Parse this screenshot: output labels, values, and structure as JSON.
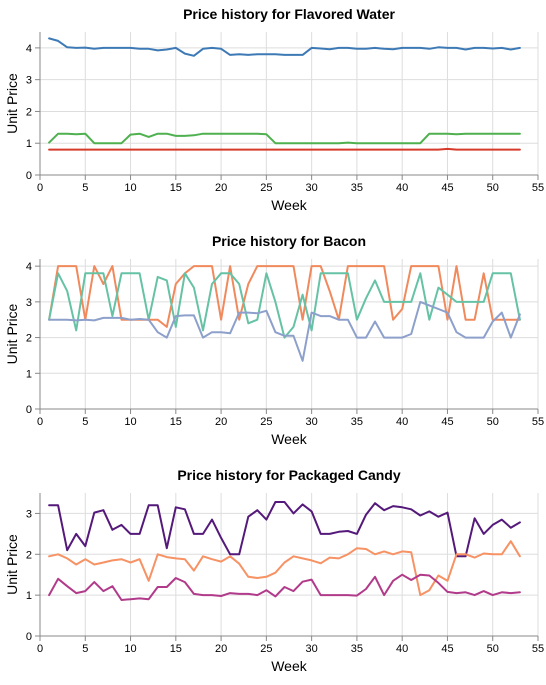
{
  "chart_data": [
    {
      "type": "line",
      "title": "Price history for Flavored Water",
      "xlabel": "Week",
      "ylabel": "Unit Price",
      "xlim": [
        0,
        55
      ],
      "ylim": [
        0,
        4.5
      ],
      "x_ticks": [
        0,
        5,
        10,
        15,
        20,
        25,
        30,
        35,
        40,
        45,
        50,
        55
      ],
      "y_ticks": [
        0,
        1,
        2,
        3,
        4
      ],
      "grid": true,
      "x": [
        1,
        2,
        3,
        4,
        5,
        6,
        7,
        8,
        9,
        10,
        11,
        12,
        13,
        14,
        15,
        16,
        17,
        18,
        19,
        20,
        21,
        22,
        23,
        24,
        25,
        26,
        27,
        28,
        29,
        30,
        31,
        32,
        33,
        34,
        35,
        36,
        37,
        38,
        39,
        40,
        41,
        42,
        43,
        44,
        45,
        46,
        47,
        48,
        49,
        50,
        51,
        52,
        53
      ],
      "series": [
        {
          "color": "#3d7ab5",
          "values": [
            4.3,
            4.22,
            4.02,
            4.0,
            4.01,
            3.97,
            4.0,
            4.0,
            4.0,
            4.0,
            3.97,
            3.97,
            3.92,
            3.95,
            4.0,
            3.82,
            3.75,
            3.97,
            4.0,
            3.97,
            3.78,
            3.8,
            3.78,
            3.8,
            3.8,
            3.8,
            3.78,
            3.78,
            3.78,
            4.0,
            3.98,
            3.96,
            4.0,
            4.0,
            3.97,
            3.97,
            4.0,
            3.97,
            3.96,
            4.0,
            4.0,
            4.0,
            3.97,
            4.02,
            4.0,
            4.0,
            3.95,
            4.0,
            4.0,
            3.98,
            4.0,
            3.95,
            4.0
          ]
        },
        {
          "color": "#4fb04f",
          "values": [
            1.02,
            1.3,
            1.3,
            1.28,
            1.3,
            1.0,
            1.0,
            1.0,
            1.0,
            1.27,
            1.3,
            1.2,
            1.3,
            1.3,
            1.23,
            1.23,
            1.25,
            1.3,
            1.3,
            1.3,
            1.3,
            1.3,
            1.3,
            1.3,
            1.28,
            1.0,
            1.0,
            1.0,
            1.0,
            1.0,
            1.0,
            1.0,
            1.0,
            1.02,
            1.0,
            1.0,
            1.0,
            1.0,
            1.0,
            1.0,
            1.0,
            1.0,
            1.3,
            1.3,
            1.3,
            1.28,
            1.3,
            1.3,
            1.3,
            1.3,
            1.3,
            1.3,
            1.3
          ]
        },
        {
          "color": "#d63a2a",
          "values": [
            0.8,
            0.8,
            0.8,
            0.8,
            0.8,
            0.8,
            0.8,
            0.8,
            0.8,
            0.8,
            0.8,
            0.8,
            0.8,
            0.8,
            0.8,
            0.8,
            0.8,
            0.8,
            0.8,
            0.8,
            0.8,
            0.8,
            0.8,
            0.8,
            0.8,
            0.8,
            0.8,
            0.8,
            0.8,
            0.8,
            0.8,
            0.8,
            0.8,
            0.8,
            0.8,
            0.8,
            0.8,
            0.8,
            0.8,
            0.8,
            0.8,
            0.8,
            0.8,
            0.8,
            0.82,
            0.8,
            0.8,
            0.8,
            0.8,
            0.8,
            0.8,
            0.8,
            0.8
          ]
        }
      ]
    },
    {
      "type": "line",
      "title": "Price history for Bacon",
      "xlabel": "Week",
      "ylabel": "Unit Price",
      "xlim": [
        0,
        55
      ],
      "ylim": [
        0,
        4.2
      ],
      "x_ticks": [
        0,
        5,
        10,
        15,
        20,
        25,
        30,
        35,
        40,
        45,
        50,
        55
      ],
      "y_ticks": [
        0,
        1,
        2,
        3,
        4
      ],
      "grid": true,
      "x": [
        1,
        2,
        3,
        4,
        5,
        6,
        7,
        8,
        9,
        10,
        11,
        12,
        13,
        14,
        15,
        16,
        17,
        18,
        19,
        20,
        21,
        22,
        23,
        24,
        25,
        26,
        27,
        28,
        29,
        30,
        31,
        32,
        33,
        34,
        35,
        36,
        37,
        38,
        39,
        40,
        41,
        42,
        43,
        44,
        45,
        46,
        47,
        48,
        49,
        50,
        51,
        52,
        53
      ],
      "series": [
        {
          "color": "#f08a5d",
          "values": [
            2.5,
            4.0,
            4.0,
            4.0,
            2.5,
            4.0,
            3.5,
            4.0,
            2.5,
            2.5,
            2.5,
            2.5,
            2.5,
            2.3,
            3.5,
            3.8,
            4.0,
            4.0,
            4.0,
            2.5,
            4.0,
            2.5,
            3.5,
            4.0,
            4.0,
            4.0,
            4.0,
            4.0,
            2.5,
            4.0,
            4.0,
            3.3,
            2.5,
            4.0,
            4.0,
            4.0,
            4.0,
            4.0,
            2.5,
            2.8,
            4.0,
            4.0,
            4.0,
            4.0,
            2.5,
            4.0,
            2.5,
            2.5,
            3.8,
            2.5,
            2.5,
            2.5,
            2.5
          ]
        },
        {
          "color": "#66c2a5",
          "values": [
            2.5,
            3.8,
            3.3,
            2.2,
            3.8,
            3.8,
            3.8,
            2.6,
            3.8,
            3.8,
            3.8,
            2.5,
            3.7,
            3.6,
            2.3,
            3.8,
            3.4,
            2.2,
            3.5,
            3.8,
            3.8,
            3.5,
            2.4,
            2.5,
            3.8,
            3.0,
            2.0,
            2.3,
            3.2,
            2.2,
            3.8,
            3.8,
            3.8,
            3.8,
            2.5,
            3.1,
            3.6,
            3.0,
            3.0,
            3.0,
            3.0,
            3.8,
            2.5,
            3.4,
            3.2,
            3.0,
            3.0,
            3.0,
            3.0,
            3.8,
            3.8,
            3.8,
            2.5
          ]
        },
        {
          "color": "#8da0cb",
          "values": [
            2.5,
            2.5,
            2.5,
            2.48,
            2.5,
            2.48,
            2.55,
            2.55,
            2.55,
            2.5,
            2.52,
            2.5,
            2.15,
            2.0,
            2.6,
            2.62,
            2.62,
            2.0,
            2.15,
            2.15,
            2.12,
            2.7,
            2.7,
            2.68,
            2.75,
            2.15,
            2.05,
            2.05,
            1.35,
            2.7,
            2.6,
            2.6,
            2.5,
            2.5,
            2.0,
            2.0,
            2.45,
            2.0,
            2.0,
            2.0,
            2.1,
            3.0,
            2.9,
            2.8,
            2.7,
            2.15,
            2.0,
            2.0,
            2.0,
            2.45,
            2.7,
            2.0,
            2.65
          ]
        }
      ]
    },
    {
      "type": "line",
      "title": "Price history for Packaged Candy",
      "xlabel": "Week",
      "ylabel": "Unit Price",
      "xlim": [
        0,
        55
      ],
      "ylim": [
        0,
        3.5
      ],
      "x_ticks": [
        0,
        5,
        10,
        15,
        20,
        25,
        30,
        35,
        40,
        45,
        50,
        55
      ],
      "y_ticks": [
        0,
        1,
        2,
        3
      ],
      "grid": true,
      "x": [
        1,
        2,
        3,
        4,
        5,
        6,
        7,
        8,
        9,
        10,
        11,
        12,
        13,
        14,
        15,
        16,
        17,
        18,
        19,
        20,
        21,
        22,
        23,
        24,
        25,
        26,
        27,
        28,
        29,
        30,
        31,
        32,
        33,
        34,
        35,
        36,
        37,
        38,
        39,
        40,
        41,
        42,
        43,
        44,
        45,
        46,
        47,
        48,
        49,
        50,
        51,
        52,
        53
      ],
      "series": [
        {
          "color": "#54197a",
          "values": [
            3.2,
            3.2,
            2.1,
            2.5,
            2.2,
            3.02,
            3.08,
            2.6,
            2.72,
            2.5,
            2.5,
            3.2,
            3.2,
            2.15,
            3.15,
            3.1,
            2.5,
            2.5,
            2.85,
            2.4,
            2.0,
            2.0,
            2.92,
            3.08,
            2.85,
            3.28,
            3.28,
            3.0,
            3.22,
            3.05,
            2.5,
            2.5,
            2.55,
            2.57,
            2.5,
            2.97,
            3.25,
            3.08,
            3.18,
            3.15,
            3.1,
            2.95,
            3.05,
            2.92,
            3.02,
            1.95,
            1.95,
            2.88,
            2.5,
            2.72,
            2.85,
            2.65,
            2.78
          ]
        },
        {
          "color": "#f69264",
          "values": [
            1.95,
            2.0,
            1.9,
            1.75,
            1.88,
            1.75,
            1.8,
            1.85,
            1.88,
            1.8,
            1.88,
            1.35,
            2.0,
            1.93,
            1.9,
            1.88,
            1.6,
            1.95,
            1.88,
            1.82,
            1.95,
            1.77,
            1.45,
            1.42,
            1.45,
            1.55,
            1.8,
            1.95,
            1.9,
            1.85,
            1.78,
            1.92,
            1.9,
            2.0,
            2.15,
            2.13,
            2.0,
            2.07,
            2.0,
            2.07,
            2.05,
            1.0,
            1.12,
            1.48,
            1.35,
            2.0,
            2.0,
            1.92,
            2.02,
            2.0,
            2.0,
            2.32,
            1.95
          ]
        },
        {
          "color": "#b13a8a",
          "values": [
            1.0,
            1.4,
            1.22,
            1.05,
            1.1,
            1.32,
            1.1,
            1.22,
            0.88,
            0.9,
            0.92,
            0.9,
            1.2,
            1.2,
            1.42,
            1.32,
            1.03,
            1.0,
            1.0,
            0.98,
            1.05,
            1.03,
            1.03,
            1.0,
            1.12,
            0.97,
            1.2,
            1.1,
            1.33,
            1.38,
            1.0,
            1.0,
            1.0,
            1.0,
            0.99,
            1.15,
            1.45,
            1.0,
            1.35,
            1.5,
            1.37,
            1.5,
            1.48,
            1.3,
            1.08,
            1.05,
            1.07,
            1.0,
            1.1,
            1.0,
            1.07,
            1.05,
            1.07
          ]
        }
      ]
    }
  ]
}
